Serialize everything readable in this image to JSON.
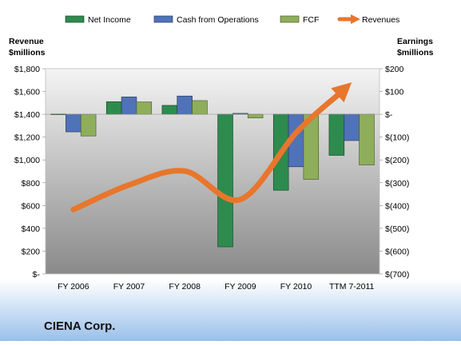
{
  "company": "CIENA Corp.",
  "chart_data": {
    "type": "bar",
    "categories": [
      "FY 2006",
      "FY 2007",
      "FY 2008",
      "FY 2009",
      "FY 2010",
      "TTM 7-2011"
    ],
    "left_axis": {
      "label_line1": "Revenue",
      "label_line2": "$millions",
      "ylim": [
        0,
        1800
      ],
      "ticks": [
        0,
        200,
        400,
        600,
        800,
        1000,
        1200,
        1400,
        1600,
        1800
      ],
      "tick_labels": [
        "$-",
        "$200",
        "$400",
        "$600",
        "$800",
        "$1,000",
        "$1,200",
        "$1,400",
        "$1,600",
        "$1,800"
      ]
    },
    "right_axis": {
      "label_line1": "Earnings",
      "label_line2": "$millions",
      "ylim": [
        -700,
        200
      ],
      "ticks": [
        -700,
        -600,
        -500,
        -400,
        -300,
        -200,
        -100,
        0,
        100,
        200
      ],
      "tick_labels": [
        "$(700)",
        "$(600)",
        "$(500)",
        "$(400)",
        "$(300)",
        "$(200)",
        "$(100)",
        "$-",
        "$100",
        "$200"
      ]
    },
    "series": [
      {
        "name": "Net Income",
        "axis": "right",
        "kind": "bar",
        "color": "#2e8b4e",
        "values": [
          1,
          55,
          39,
          -581,
          -333,
          -180
        ]
      },
      {
        "name": "Cash from Operations",
        "axis": "right",
        "kind": "bar",
        "color": "#4f72b8",
        "values": [
          -77,
          76,
          80,
          4,
          -230,
          -115
        ]
      },
      {
        "name": "FCF",
        "axis": "right",
        "kind": "bar",
        "color": "#8fae5c",
        "values": [
          -95,
          54,
          60,
          -16,
          -285,
          -222
        ]
      },
      {
        "name": "Revenues",
        "axis": "left",
        "kind": "arrow",
        "color": "#e8762c",
        "values": [
          564,
          780,
          902,
          653,
          1237,
          1680
        ]
      }
    ],
    "legend_position": "top",
    "grid": false
  }
}
